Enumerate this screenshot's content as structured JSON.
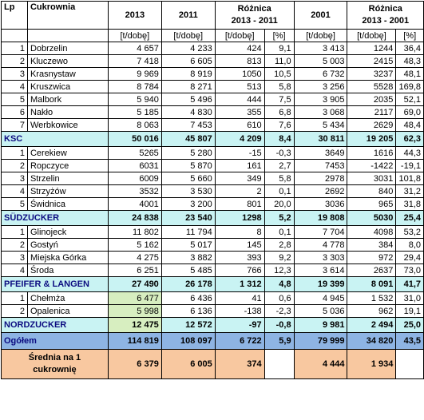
{
  "header": {
    "lp": "Lp",
    "name": "Cukrownia",
    "y2013": "2013",
    "y2011": "2011",
    "diff1_line1": "Różnica",
    "diff1_line2": "2013 - 2011",
    "y2001": "2001",
    "diff2_line1": "Różnica",
    "diff2_line2": "2013 - 2001"
  },
  "units": [
    "[t/dobę]",
    "[t/dobę]",
    "[t/dobę]",
    "[%]",
    "[t/dobę]",
    "[t/dobę]",
    "[%]"
  ],
  "groups": [
    {
      "rows": [
        {
          "lp": "1",
          "name": "Dobrzelin",
          "v2013": "4 657",
          "v2011": "4 233",
          "d1": "424",
          "p1": "9,1",
          "v2001": "3 413",
          "d2": "1244",
          "p2": "36,4"
        },
        {
          "lp": "2",
          "name": "Kluczewo",
          "v2013": "7 418",
          "v2011": "6 605",
          "d1": "813",
          "p1": "11,0",
          "v2001": "5 003",
          "d2": "2415",
          "p2": "48,3"
        },
        {
          "lp": "3",
          "name": "Krasnystaw",
          "v2013": "9 969",
          "v2011": "8 919",
          "d1": "1050",
          "p1": "10,5",
          "v2001": "6 732",
          "d2": "3237",
          "p2": "48,1"
        },
        {
          "lp": "4",
          "name": "Kruszwica",
          "v2013": "8 784",
          "v2011": "8 271",
          "d1": "513",
          "p1": "5,8",
          "v2001": "3 256",
          "d2": "5528",
          "p2": "169,8"
        },
        {
          "lp": "5",
          "name": "Malbork",
          "v2013": "5 940",
          "v2011": "5 496",
          "d1": "444",
          "p1": "7,5",
          "v2001": "3 905",
          "d2": "2035",
          "p2": "52,1"
        },
        {
          "lp": "6",
          "name": "Nakło",
          "v2013": "5 185",
          "v2011": "4 830",
          "d1": "355",
          "p1": "6,8",
          "v2001": "3 068",
          "d2": "2117",
          "p2": "69,0"
        },
        {
          "lp": "7",
          "name": "Werbkowice",
          "v2013": "8 063",
          "v2011": "7 453",
          "d1": "610",
          "p1": "7,6",
          "v2001": "5 434",
          "d2": "2629",
          "p2": "48,4"
        }
      ],
      "summary": {
        "name": "KSC",
        "v2013": "50 016",
        "v2011": "45 807",
        "d1": "4 209",
        "p1": "8,4",
        "v2001": "30 811",
        "d2": "19 205",
        "p2": "62,3"
      }
    },
    {
      "rows": [
        {
          "lp": "1",
          "name": "Cerekiew",
          "v2013": "5265",
          "v2011": "5 280",
          "d1": "-15",
          "p1": "-0,3",
          "v2001": "3649",
          "d2": "1616",
          "p2": "44,3"
        },
        {
          "lp": "2",
          "name": "Ropczyce",
          "v2013": "6031",
          "v2011": "5 870",
          "d1": "161",
          "p1": "2,7",
          "v2001": "7453",
          "d2": "-1422",
          "p2": "-19,1"
        },
        {
          "lp": "3",
          "name": "Strzelin",
          "v2013": "6009",
          "v2011": "5 660",
          "d1": "349",
          "p1": "5,8",
          "v2001": "2978",
          "d2": "3031",
          "p2": "101,8"
        },
        {
          "lp": "4",
          "name": "Strzyżów",
          "v2013": "3532",
          "v2011": "3 530",
          "d1": "2",
          "p1": "0,1",
          "v2001": "2692",
          "d2": "840",
          "p2": "31,2"
        },
        {
          "lp": "5",
          "name": "Świdnica",
          "v2013": "4001",
          "v2011": "3 200",
          "d1": "801",
          "p1": "20,0",
          "v2001": "3036",
          "d2": "965",
          "p2": "31,8"
        }
      ],
      "summary": {
        "name": "SÜDZUCKER",
        "v2013": "24 838",
        "v2011": "23 540",
        "d1": "1298",
        "p1": "5,2",
        "v2001": "19 808",
        "d2": "5030",
        "p2": "25,4"
      }
    },
    {
      "rows": [
        {
          "lp": "1",
          "name": "Glinojeck",
          "v2013": "11 802",
          "v2011": "11 794",
          "d1": "8",
          "p1": "0,1",
          "v2001": "7 704",
          "d2": "4098",
          "p2": "53,2"
        },
        {
          "lp": "2",
          "name": "Gostyń",
          "v2013": "5 162",
          "v2011": "5 017",
          "d1": "145",
          "p1": "2,8",
          "v2001": "4 778",
          "d2": "384",
          "p2": "8,0"
        },
        {
          "lp": "3",
          "name": "Miejska Górka",
          "v2013": "4 275",
          "v2011": "3 882",
          "d1": "393",
          "p1": "9,2",
          "v2001": "3 303",
          "d2": "972",
          "p2": "29,4"
        },
        {
          "lp": "4",
          "name": "Środa",
          "v2013": "6 251",
          "v2011": "5 485",
          "d1": "766",
          "p1": "12,3",
          "v2001": "3 614",
          "d2": "2637",
          "p2": "73,0"
        }
      ],
      "summary": {
        "name": "PFEIFER & LANGEN",
        "v2013": "27 490",
        "v2011": "26 178",
        "d1": "1 312",
        "p1": "4,8",
        "v2001": "19 399",
        "d2": "8 091",
        "p2": "41,7"
      }
    },
    {
      "rows": [
        {
          "lp": "1",
          "name": "Chełmża",
          "v2013": "6 477",
          "v2011": "6 436",
          "d1": "41",
          "p1": "0,6",
          "v2001": "4 945",
          "d2": "1 532",
          "p2": "31,0"
        },
        {
          "lp": "2",
          "name": "Opalenica",
          "v2013": "5 998",
          "v2011": "6 136",
          "d1": "-138",
          "p1": "-2,3",
          "v2001": "5 036",
          "d2": "962",
          "p2": "19,1"
        }
      ],
      "summary": {
        "name": "NORDZUCKER",
        "v2013": "12 475",
        "v2011": "12 572",
        "d1": "-97",
        "p1": "-0,8",
        "v2001": "9 981",
        "d2": "2 494",
        "p2": "25,0"
      }
    }
  ],
  "total": {
    "name": "Ogółem",
    "v2013": "114 819",
    "v2011": "108 097",
    "d1": "6 722",
    "p1": "5,9",
    "v2001": "79 999",
    "d2": "34 820",
    "p2": "43,5"
  },
  "average": {
    "line1": "Średnia na 1",
    "line2": "cukrownię",
    "v2013": "6 379",
    "v2011": "6 005",
    "d1": "374",
    "v2001": "4 444",
    "d2": "1 934"
  },
  "colors": {
    "group_fill": "#c9f3f3",
    "total_fill": "#8eb4e3",
    "average_fill": "#f8c8a0",
    "highlight_fill": "#d7eec0"
  }
}
